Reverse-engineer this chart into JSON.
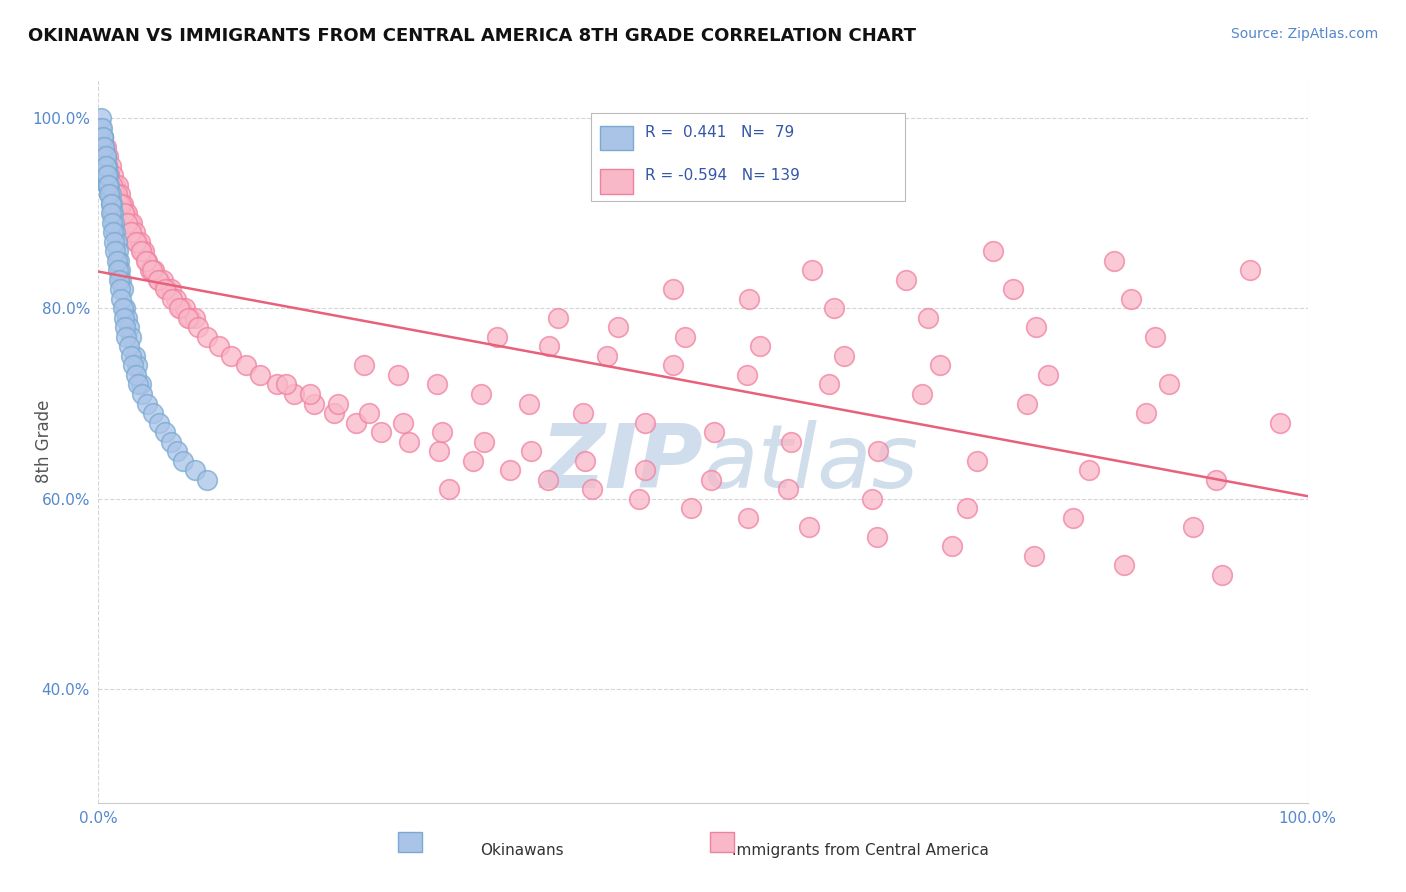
{
  "title": "OKINAWAN VS IMMIGRANTS FROM CENTRAL AMERICA 8TH GRADE CORRELATION CHART",
  "source_text": "Source: ZipAtlas.com",
  "ylabel": "8th Grade",
  "xlabel": "",
  "xlim": [
    0.0,
    1.0
  ],
  "ylim": [
    0.28,
    1.04
  ],
  "yticks": [
    0.4,
    0.6,
    0.8,
    1.0
  ],
  "ytick_labels": [
    "40.0%",
    "60.0%",
    "80.0%",
    "100.0%"
  ],
  "xticks": [
    0.0,
    1.0
  ],
  "xtick_labels": [
    "0.0%",
    "100.0%"
  ],
  "color_okinawan_face": "#aac4e8",
  "color_okinawan_edge": "#7aaad0",
  "color_central_face": "#f9b8c8",
  "color_central_edge": "#f080a0",
  "color_trend_central": "#e8607a",
  "watermark_color": "#c8d8ea",
  "background_color": "#ffffff",
  "grid_color": "#cccccc",
  "legend_label1": "Okinawans",
  "legend_label2": "Immigrants from Central America",
  "okinawan_x": [
    0.001,
    0.002,
    0.002,
    0.003,
    0.003,
    0.004,
    0.004,
    0.004,
    0.005,
    0.005,
    0.005,
    0.006,
    0.006,
    0.007,
    0.007,
    0.007,
    0.008,
    0.008,
    0.009,
    0.009,
    0.01,
    0.01,
    0.011,
    0.011,
    0.012,
    0.013,
    0.014,
    0.015,
    0.016,
    0.017,
    0.018,
    0.019,
    0.02,
    0.022,
    0.024,
    0.025,
    0.027,
    0.03,
    0.032,
    0.035,
    0.002,
    0.003,
    0.004,
    0.005,
    0.006,
    0.006,
    0.007,
    0.008,
    0.009,
    0.01,
    0.01,
    0.011,
    0.012,
    0.013,
    0.014,
    0.015,
    0.016,
    0.017,
    0.018,
    0.019,
    0.02,
    0.021,
    0.022,
    0.023,
    0.025,
    0.027,
    0.029,
    0.031,
    0.033,
    0.036,
    0.04,
    0.045,
    0.05,
    0.055,
    0.06,
    0.065,
    0.07,
    0.08,
    0.09
  ],
  "okinawan_y": [
    0.98,
    0.99,
    0.97,
    0.98,
    0.96,
    0.97,
    0.98,
    0.95,
    0.96,
    0.97,
    0.94,
    0.96,
    0.95,
    0.94,
    0.95,
    0.93,
    0.94,
    0.93,
    0.92,
    0.93,
    0.92,
    0.91,
    0.91,
    0.9,
    0.9,
    0.89,
    0.88,
    0.87,
    0.86,
    0.85,
    0.84,
    0.83,
    0.82,
    0.8,
    0.79,
    0.78,
    0.77,
    0.75,
    0.74,
    0.72,
    1.0,
    0.99,
    0.98,
    0.97,
    0.96,
    0.95,
    0.94,
    0.93,
    0.92,
    0.91,
    0.9,
    0.89,
    0.88,
    0.87,
    0.86,
    0.85,
    0.84,
    0.83,
    0.82,
    0.81,
    0.8,
    0.79,
    0.78,
    0.77,
    0.76,
    0.75,
    0.74,
    0.73,
    0.72,
    0.71,
    0.7,
    0.69,
    0.68,
    0.67,
    0.66,
    0.65,
    0.64,
    0.63,
    0.62
  ],
  "central_x": [
    0.004,
    0.006,
    0.008,
    0.01,
    0.012,
    0.014,
    0.016,
    0.018,
    0.02,
    0.022,
    0.024,
    0.026,
    0.028,
    0.03,
    0.032,
    0.034,
    0.036,
    0.038,
    0.04,
    0.043,
    0.046,
    0.05,
    0.053,
    0.057,
    0.06,
    0.064,
    0.068,
    0.072,
    0.076,
    0.08,
    0.005,
    0.007,
    0.009,
    0.011,
    0.013,
    0.015,
    0.017,
    0.019,
    0.021,
    0.024,
    0.027,
    0.031,
    0.035,
    0.039,
    0.044,
    0.049,
    0.055,
    0.061,
    0.067,
    0.074,
    0.082,
    0.09,
    0.1,
    0.11,
    0.122,
    0.134,
    0.148,
    0.162,
    0.178,
    0.195,
    0.213,
    0.234,
    0.257,
    0.282,
    0.31,
    0.34,
    0.372,
    0.408,
    0.447,
    0.49,
    0.537,
    0.588,
    0.644,
    0.706,
    0.774,
    0.848,
    0.929,
    0.155,
    0.175,
    0.198,
    0.224,
    0.252,
    0.284,
    0.319,
    0.358,
    0.402,
    0.452,
    0.507,
    0.57,
    0.64,
    0.718,
    0.806,
    0.905,
    0.22,
    0.248,
    0.28,
    0.316,
    0.356,
    0.401,
    0.452,
    0.509,
    0.573,
    0.645,
    0.727,
    0.819,
    0.924,
    0.29,
    0.33,
    0.373,
    0.421,
    0.475,
    0.536,
    0.604,
    0.681,
    0.768,
    0.866,
    0.977,
    0.38,
    0.43,
    0.485,
    0.547,
    0.617,
    0.696,
    0.785,
    0.885,
    0.475,
    0.538,
    0.608,
    0.686,
    0.775,
    0.874,
    0.59,
    0.668,
    0.756,
    0.854,
    0.74,
    0.84,
    0.952
  ],
  "central_y": [
    0.98,
    0.97,
    0.96,
    0.95,
    0.94,
    0.93,
    0.93,
    0.92,
    0.91,
    0.9,
    0.9,
    0.89,
    0.89,
    0.88,
    0.87,
    0.87,
    0.86,
    0.86,
    0.85,
    0.84,
    0.84,
    0.83,
    0.83,
    0.82,
    0.82,
    0.81,
    0.8,
    0.8,
    0.79,
    0.79,
    0.96,
    0.95,
    0.94,
    0.93,
    0.92,
    0.92,
    0.91,
    0.91,
    0.9,
    0.89,
    0.88,
    0.87,
    0.86,
    0.85,
    0.84,
    0.83,
    0.82,
    0.81,
    0.8,
    0.79,
    0.78,
    0.77,
    0.76,
    0.75,
    0.74,
    0.73,
    0.72,
    0.71,
    0.7,
    0.69,
    0.68,
    0.67,
    0.66,
    0.65,
    0.64,
    0.63,
    0.62,
    0.61,
    0.6,
    0.59,
    0.58,
    0.57,
    0.56,
    0.55,
    0.54,
    0.53,
    0.52,
    0.72,
    0.71,
    0.7,
    0.69,
    0.68,
    0.67,
    0.66,
    0.65,
    0.64,
    0.63,
    0.62,
    0.61,
    0.6,
    0.59,
    0.58,
    0.57,
    0.74,
    0.73,
    0.72,
    0.71,
    0.7,
    0.69,
    0.68,
    0.67,
    0.66,
    0.65,
    0.64,
    0.63,
    0.62,
    0.61,
    0.77,
    0.76,
    0.75,
    0.74,
    0.73,
    0.72,
    0.71,
    0.7,
    0.69,
    0.68,
    0.79,
    0.78,
    0.77,
    0.76,
    0.75,
    0.74,
    0.73,
    0.72,
    0.82,
    0.81,
    0.8,
    0.79,
    0.78,
    0.77,
    0.84,
    0.83,
    0.82,
    0.81,
    0.86,
    0.85,
    0.84
  ]
}
